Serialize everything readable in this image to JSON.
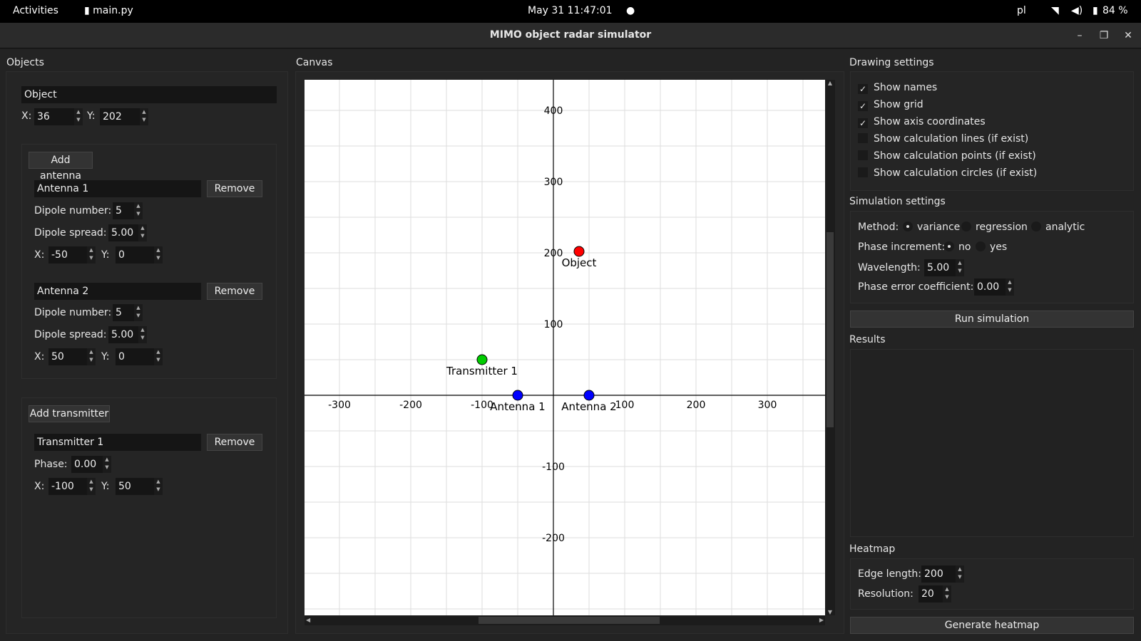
{
  "topbar": {
    "activities": "Activities",
    "app": "main.py",
    "datetime": "May 31  11:47:01",
    "lang": "pl",
    "battery": "84 %"
  },
  "window": {
    "title": "MIMO object radar simulator"
  },
  "objects_panel": {
    "label": "Objects",
    "object": {
      "name": "Object",
      "x": "36",
      "y": "202"
    },
    "add_antenna": "Add antenna",
    "antennas": [
      {
        "name": "Antenna 1",
        "dipole_number": "5",
        "dipole_spread": "5.00",
        "x": "-50",
        "y": "0"
      },
      {
        "name": "Antenna 2",
        "dipole_number": "5",
        "dipole_spread": "5.00",
        "x": "50",
        "y": "0"
      }
    ],
    "add_transmitter": "Add transmitter",
    "transmitters": [
      {
        "name": "Transmitter 1",
        "phase": "0.00",
        "x": "-100",
        "y": "50"
      }
    ],
    "remove": "Remove",
    "x_label": "X:",
    "y_label": "Y:",
    "dipole_number_label": "Dipole number:",
    "dipole_spread_label": "Dipole spread:",
    "phase_label": "Phase:"
  },
  "canvas": {
    "label": "Canvas",
    "x_ticks": [
      "-300",
      "-200",
      "-100",
      "100",
      "200",
      "300"
    ],
    "y_ticks": [
      "400",
      "300",
      "200",
      "100",
      "-100",
      "-200"
    ],
    "colors": {
      "object": "#ff0000",
      "antenna": "#0000ff",
      "transmitter": "#00cc00"
    },
    "points": [
      {
        "name": "Object",
        "x": 36,
        "y": 202,
        "kind": "object"
      },
      {
        "name": "Antenna 1",
        "x": -50,
        "y": 0,
        "kind": "antenna"
      },
      {
        "name": "Antenna 2",
        "x": 50,
        "y": 0,
        "kind": "antenna"
      },
      {
        "name": "Transmitter 1",
        "x": -100,
        "y": 50,
        "kind": "transmitter"
      }
    ]
  },
  "drawing_settings": {
    "label": "Drawing settings",
    "options": [
      {
        "label": "Show names",
        "checked": true
      },
      {
        "label": "Show grid",
        "checked": true
      },
      {
        "label": "Show axis coordinates",
        "checked": true
      },
      {
        "label": "Show calculation lines (if exist)",
        "checked": false
      },
      {
        "label": "Show calculation points (if exist)",
        "checked": false
      },
      {
        "label": "Show calculation circles (if exist)",
        "checked": false
      }
    ],
    "check_mark": "✓"
  },
  "simulation_settings": {
    "label": "Simulation settings",
    "method_label": "Method:",
    "methods": [
      "variance",
      "regression",
      "analytic"
    ],
    "selected_method": "variance",
    "phase_increment_label": "Phase increment:",
    "phase_options": [
      "no",
      "yes"
    ],
    "wavelength_label": "Wavelength:",
    "wavelength": "5.00",
    "phase_error_label": "Phase error coefficient:",
    "phase_error": "0.00",
    "run": "Run simulation"
  },
  "results": {
    "label": "Results"
  },
  "heatmap": {
    "label": "Heatmap",
    "edge_length_label": "Edge length:",
    "edge_length": "200",
    "resolution_label": "Resolution:",
    "resolution": "20",
    "generate": "Generate heatmap"
  }
}
